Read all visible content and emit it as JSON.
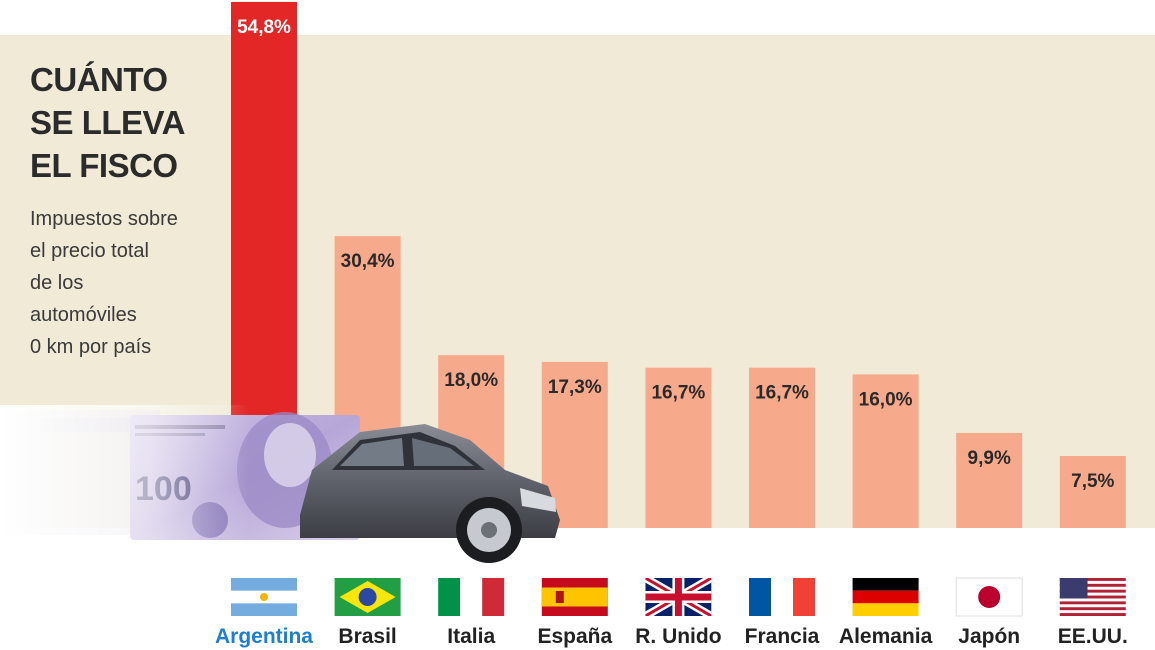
{
  "title_lines": [
    "CUÁNTO",
    "SE LLEVA",
    "EL FISCO"
  ],
  "subtitle_lines": [
    "Impuestos sobre",
    "el precio total",
    "de los",
    "automóviles",
    "0 km por país"
  ],
  "colors": {
    "panel": "#f0ead6",
    "highlight_bar": "#e32626",
    "bar": "#f7a98b",
    "highlight_label": "#1e7fd1",
    "label": "#222222",
    "value_label": "#2a2a2a",
    "highlight_value_label": "#ffffff"
  },
  "chart_data": {
    "type": "bar",
    "title": "CUÁNTO SE LLEVA EL FISCO",
    "subtitle": "Impuestos sobre el precio total de los automóviles 0 km por país",
    "categories": [
      "Argentina",
      "Brasil",
      "Italia",
      "España",
      "R. Unido",
      "Francia",
      "Alemania",
      "Japón",
      "EE.UU."
    ],
    "values": [
      54.8,
      30.4,
      18.0,
      17.3,
      16.7,
      16.7,
      16.0,
      9.9,
      7.5
    ],
    "value_labels": [
      "54,8%",
      "30,4%",
      "18,0%",
      "17,3%",
      "16,7%",
      "16,7%",
      "16,0%",
      "9,9%",
      "7,5%"
    ],
    "flags": [
      "argentina-flag-icon",
      "brazil-flag-icon",
      "italy-flag-icon",
      "spain-flag-icon",
      "uk-flag-icon",
      "france-flag-icon",
      "germany-flag-icon",
      "japan-flag-icon",
      "usa-flag-icon"
    ],
    "highlight_index": 0,
    "ylim": [
      0,
      55
    ],
    "grid": false
  }
}
